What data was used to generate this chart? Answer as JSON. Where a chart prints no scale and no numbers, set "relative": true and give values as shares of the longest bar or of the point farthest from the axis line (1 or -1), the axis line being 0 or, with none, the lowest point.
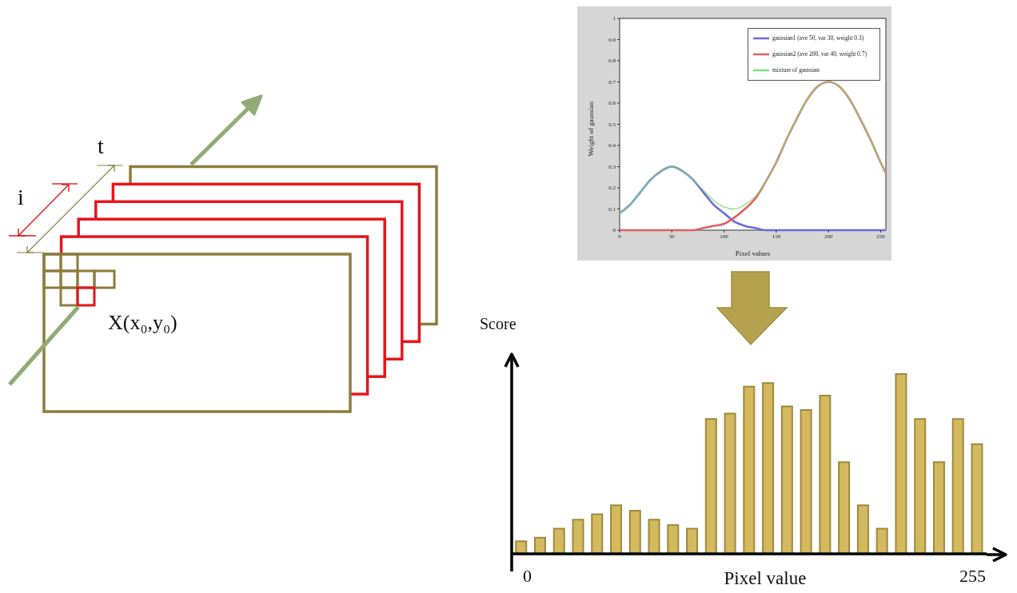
{
  "chart_data": [
    {
      "type": "other",
      "annotations": [
        "t",
        "i",
        "X(x₀,y₀)"
      ]
    },
    {
      "type": "line",
      "xlabel": "Pixel values",
      "ylabel": "Weight of gaussian",
      "xlim": [
        0,
        255
      ],
      "xticks": [
        0,
        50,
        100,
        150,
        200,
        250
      ],
      "ylim": [
        0,
        1
      ],
      "yticks": [
        0,
        0.1,
        0.2,
        0.3,
        0.4,
        0.5,
        0.6,
        0.7,
        0.8,
        0.9,
        1
      ],
      "grid": false,
      "legend": "top right",
      "marker": "none",
      "line_style": "solid",
      "x": [
        0,
        10,
        20,
        30,
        40,
        50,
        60,
        70,
        80,
        90,
        100,
        110,
        120,
        130,
        140,
        150,
        160,
        170,
        180,
        190,
        200,
        210,
        220,
        230,
        240,
        250,
        255
      ],
      "series": [
        {
          "name": "gaussian1 (ave 50, var 30, weight 0.3)",
          "color": "#6a6ae0",
          "values": [
            0.08,
            0.12,
            0.18,
            0.24,
            0.28,
            0.3,
            0.28,
            0.24,
            0.18,
            0.12,
            0.08,
            0.04,
            0.02,
            0.01,
            0,
            0,
            0,
            0,
            0,
            0,
            0,
            0,
            0,
            0,
            0,
            0,
            0
          ]
        },
        {
          "name": "gaussian2 (ave 200, var 40, weight 0.7)",
          "color": "#e06060",
          "values": [
            0,
            0,
            0,
            0,
            0,
            0,
            0,
            0,
            0.01,
            0.02,
            0.03,
            0.06,
            0.1,
            0.15,
            0.23,
            0.32,
            0.43,
            0.53,
            0.62,
            0.68,
            0.7,
            0.68,
            0.62,
            0.53,
            0.43,
            0.32,
            0.27
          ]
        },
        {
          "name": "mixture of gaussian",
          "color": "#7ee07e",
          "values": [
            0.08,
            0.12,
            0.18,
            0.24,
            0.28,
            0.3,
            0.28,
            0.24,
            0.19,
            0.14,
            0.11,
            0.1,
            0.12,
            0.16,
            0.23,
            0.32,
            0.43,
            0.53,
            0.62,
            0.68,
            0.7,
            0.68,
            0.62,
            0.53,
            0.43,
            0.32,
            0.27
          ]
        }
      ]
    },
    {
      "type": "bar",
      "relative": true,
      "xlabel": "Pixel value",
      "ylabel": "Score",
      "annotations": [
        "0",
        "255"
      ],
      "color": "#d4b95e",
      "grid": false,
      "categories": [
        null,
        null,
        null,
        null,
        null,
        null,
        null,
        null,
        null,
        null,
        null,
        null,
        null,
        null,
        null,
        null,
        null,
        null,
        null,
        null,
        null,
        null,
        null,
        null,
        null
      ],
      "values": [
        0.07,
        0.09,
        0.14,
        0.19,
        0.22,
        0.27,
        0.24,
        0.19,
        0.16,
        0.14,
        0.75,
        0.78,
        0.93,
        0.95,
        0.82,
        0.8,
        0.88,
        0.51,
        0.27,
        0.14,
        1,
        0.75,
        0.51,
        0.75,
        0.61
      ]
    }
  ]
}
